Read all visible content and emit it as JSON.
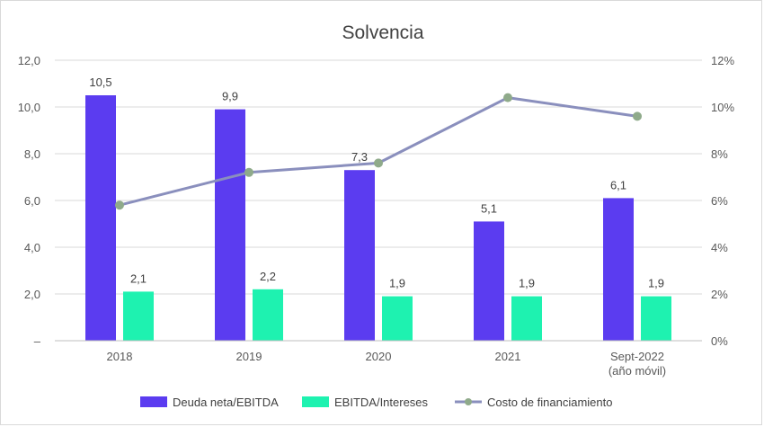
{
  "chart_data": {
    "type": "bar",
    "title": "Solvencia",
    "categories": [
      "2018",
      "2019",
      "2020",
      "2021",
      "Sept-2022|(año móvil)"
    ],
    "series": [
      {
        "name": "Deuda neta/EBITDA",
        "axis": "left",
        "chart_type": "bar",
        "color": "#5b3cf0",
        "values": [
          10.5,
          9.9,
          7.3,
          5.1,
          6.1
        ],
        "labels": [
          "10,5",
          "9,9",
          "7,3",
          "5,1",
          "6,1"
        ]
      },
      {
        "name": "EBITDA/Intereses",
        "axis": "left",
        "chart_type": "bar",
        "color": "#1ef2b0",
        "values": [
          2.1,
          2.2,
          1.9,
          1.9,
          1.9
        ],
        "labels": [
          "2,1",
          "2,2",
          "1,9",
          "1,9",
          "1,9"
        ]
      },
      {
        "name": "Costo de financiamiento",
        "axis": "right",
        "chart_type": "line",
        "color": "#8a8fbd",
        "marker_color": "#8faa8a",
        "values": [
          5.8,
          7.2,
          7.6,
          10.4,
          9.6
        ]
      }
    ],
    "y_left": {
      "ylim": [
        0,
        12
      ],
      "ticks": [
        0,
        2,
        4,
        6,
        8,
        10,
        12
      ],
      "tick_labels": [
        "–",
        "2,0",
        "4,0",
        "6,0",
        "8,0",
        "10,0",
        "12,0"
      ]
    },
    "y_right": {
      "ylim": [
        0,
        12
      ],
      "ticks": [
        0,
        2,
        4,
        6,
        8,
        10,
        12
      ],
      "tick_labels": [
        "0%",
        "2%",
        "4%",
        "6%",
        "8%",
        "10%",
        "12%"
      ],
      "unit": "%"
    },
    "grid": true,
    "legend_position": "bottom"
  }
}
